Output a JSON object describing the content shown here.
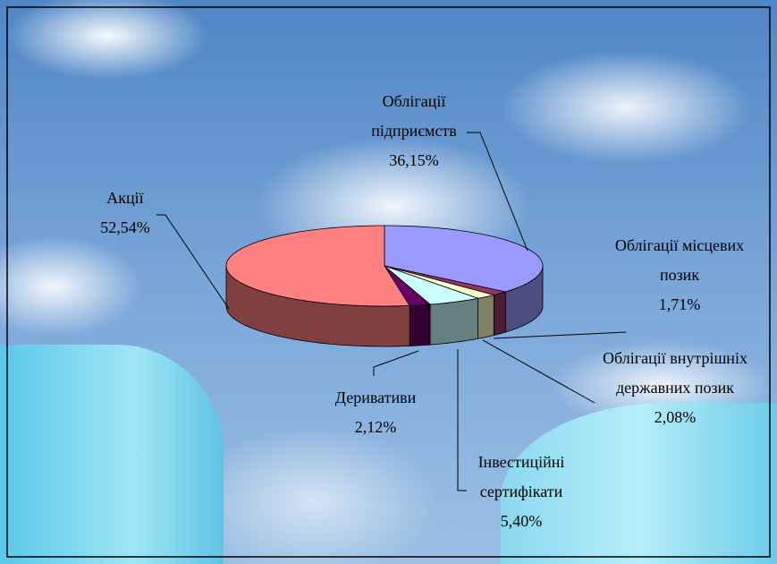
{
  "chart_data": {
    "type": "pie",
    "categories": [
      "Облігації підприємств",
      "Облігації місцевих позик",
      "Облігації внутрішніх державних позик",
      "Інвестиційні сертифікати",
      "Деривативи",
      "Акції"
    ],
    "values": [
      36.15,
      1.71,
      2.08,
      5.4,
      2.12,
      52.54
    ],
    "value_labels": [
      "36,15%",
      "1,71%",
      "2,08%",
      "5,40%",
      "2,12%",
      "52,54%"
    ],
    "colors": [
      "#9999ff",
      "#993366",
      "#ffffcc",
      "#ccffff",
      "#660066",
      "#ff8080"
    ]
  }
}
